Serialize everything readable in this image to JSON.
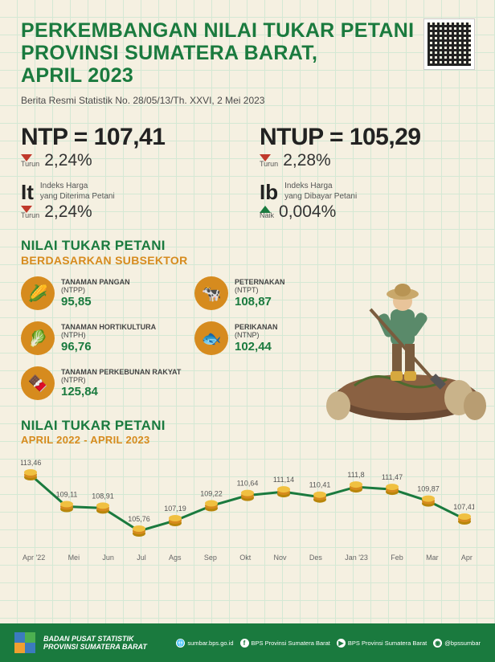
{
  "colors": {
    "green": "#1a7a3e",
    "orange": "#d68b1e",
    "red": "#c0392b",
    "text_dark": "#222222",
    "text_muted": "#555555",
    "background": "#f5f0e1",
    "grid": "#d4e8d4"
  },
  "header": {
    "title_l1": "PERKEMBANGAN NILAI TUKAR PETANI",
    "title_l2": "PROVINSI SUMATERA BARAT,",
    "title_l3": "APRIL 2023",
    "subtitle": "Berita Resmi Statistik No. 28/05/13/Th. XXVI, 2 Mei 2023"
  },
  "metrics": {
    "ntp": {
      "label": "NTP = 107,41",
      "dir": "Turun",
      "change": "2,24%"
    },
    "ntup": {
      "label": "NTUP = 105,29",
      "dir": "Turun",
      "change": "2,28%"
    },
    "it": {
      "sym": "It",
      "desc": "Indeks Harga\nyang Diterima Petani",
      "dir": "Turun",
      "change": "2,24%"
    },
    "ib": {
      "sym": "Ib",
      "desc": "Indeks Harga\nyang Dibayar Petani",
      "dir": "Naik",
      "change": "0,004%"
    }
  },
  "subsector_header": {
    "line1": "NILAI TUKAR PETANI",
    "line2": "BERDASARKAN SUBSEKTOR"
  },
  "subsectors": [
    {
      "name": "TANAMAN PANGAN",
      "code": "(NTPP)",
      "value": "95,85",
      "icon": "🌽"
    },
    {
      "name": "PETERNAKAN",
      "code": "(NTPT)",
      "value": "108,87",
      "icon": "🐄"
    },
    {
      "name": "TANAMAN HORTIKULTURA",
      "code": "(NTPH)",
      "value": "96,76",
      "icon": "🥬"
    },
    {
      "name": "PERIKANAN",
      "code": "(NTNP)",
      "value": "102,44",
      "icon": "🐟"
    },
    {
      "name": "TANAMAN PERKEBUNAN RAKYAT",
      "code": "(NTPR)",
      "value": "125,84",
      "icon": "🍫"
    }
  ],
  "chart": {
    "title_l1": "NILAI TUKAR PETANI",
    "title_l2": "APRIL 2022 - APRIL 2023",
    "type": "line",
    "line_color": "#1a7a3e",
    "marker_color": "#d68b1e",
    "line_width": 3,
    "marker_radius": 8,
    "label_fontsize": 9,
    "value_fontsize": 9,
    "ylim": [
      104,
      115
    ],
    "labels": [
      "Apr '22",
      "Mei",
      "Jun",
      "Jul",
      "Ags",
      "Sep",
      "Okt",
      "Nov",
      "Des",
      "Jan '23",
      "Feb",
      "Mar",
      "Apr"
    ],
    "values": [
      113.46,
      109.11,
      108.91,
      105.76,
      107.19,
      109.22,
      110.64,
      111.14,
      110.41,
      111.8,
      111.47,
      109.87,
      107.41
    ],
    "values_str": [
      "113,46",
      "109,11",
      "108,91",
      "105,76",
      "107,19",
      "109,22",
      "110,64",
      "111,14",
      "110,41",
      "111,8",
      "111,47",
      "109,87",
      "107,41"
    ]
  },
  "footer": {
    "org_l1": "BADAN PUSAT STATISTIK",
    "org_l2": "PROVINSI SUMATERA BARAT",
    "socials": [
      {
        "icon": "🌐",
        "text": "sumbar.bps.go.id"
      },
      {
        "icon": "f",
        "text": "BPS Provinsi Sumatera Barat"
      },
      {
        "icon": "▶",
        "text": "BPS Provinsi Sumatera Barat"
      },
      {
        "icon": "◉",
        "text": "@bpssumbar"
      }
    ]
  }
}
